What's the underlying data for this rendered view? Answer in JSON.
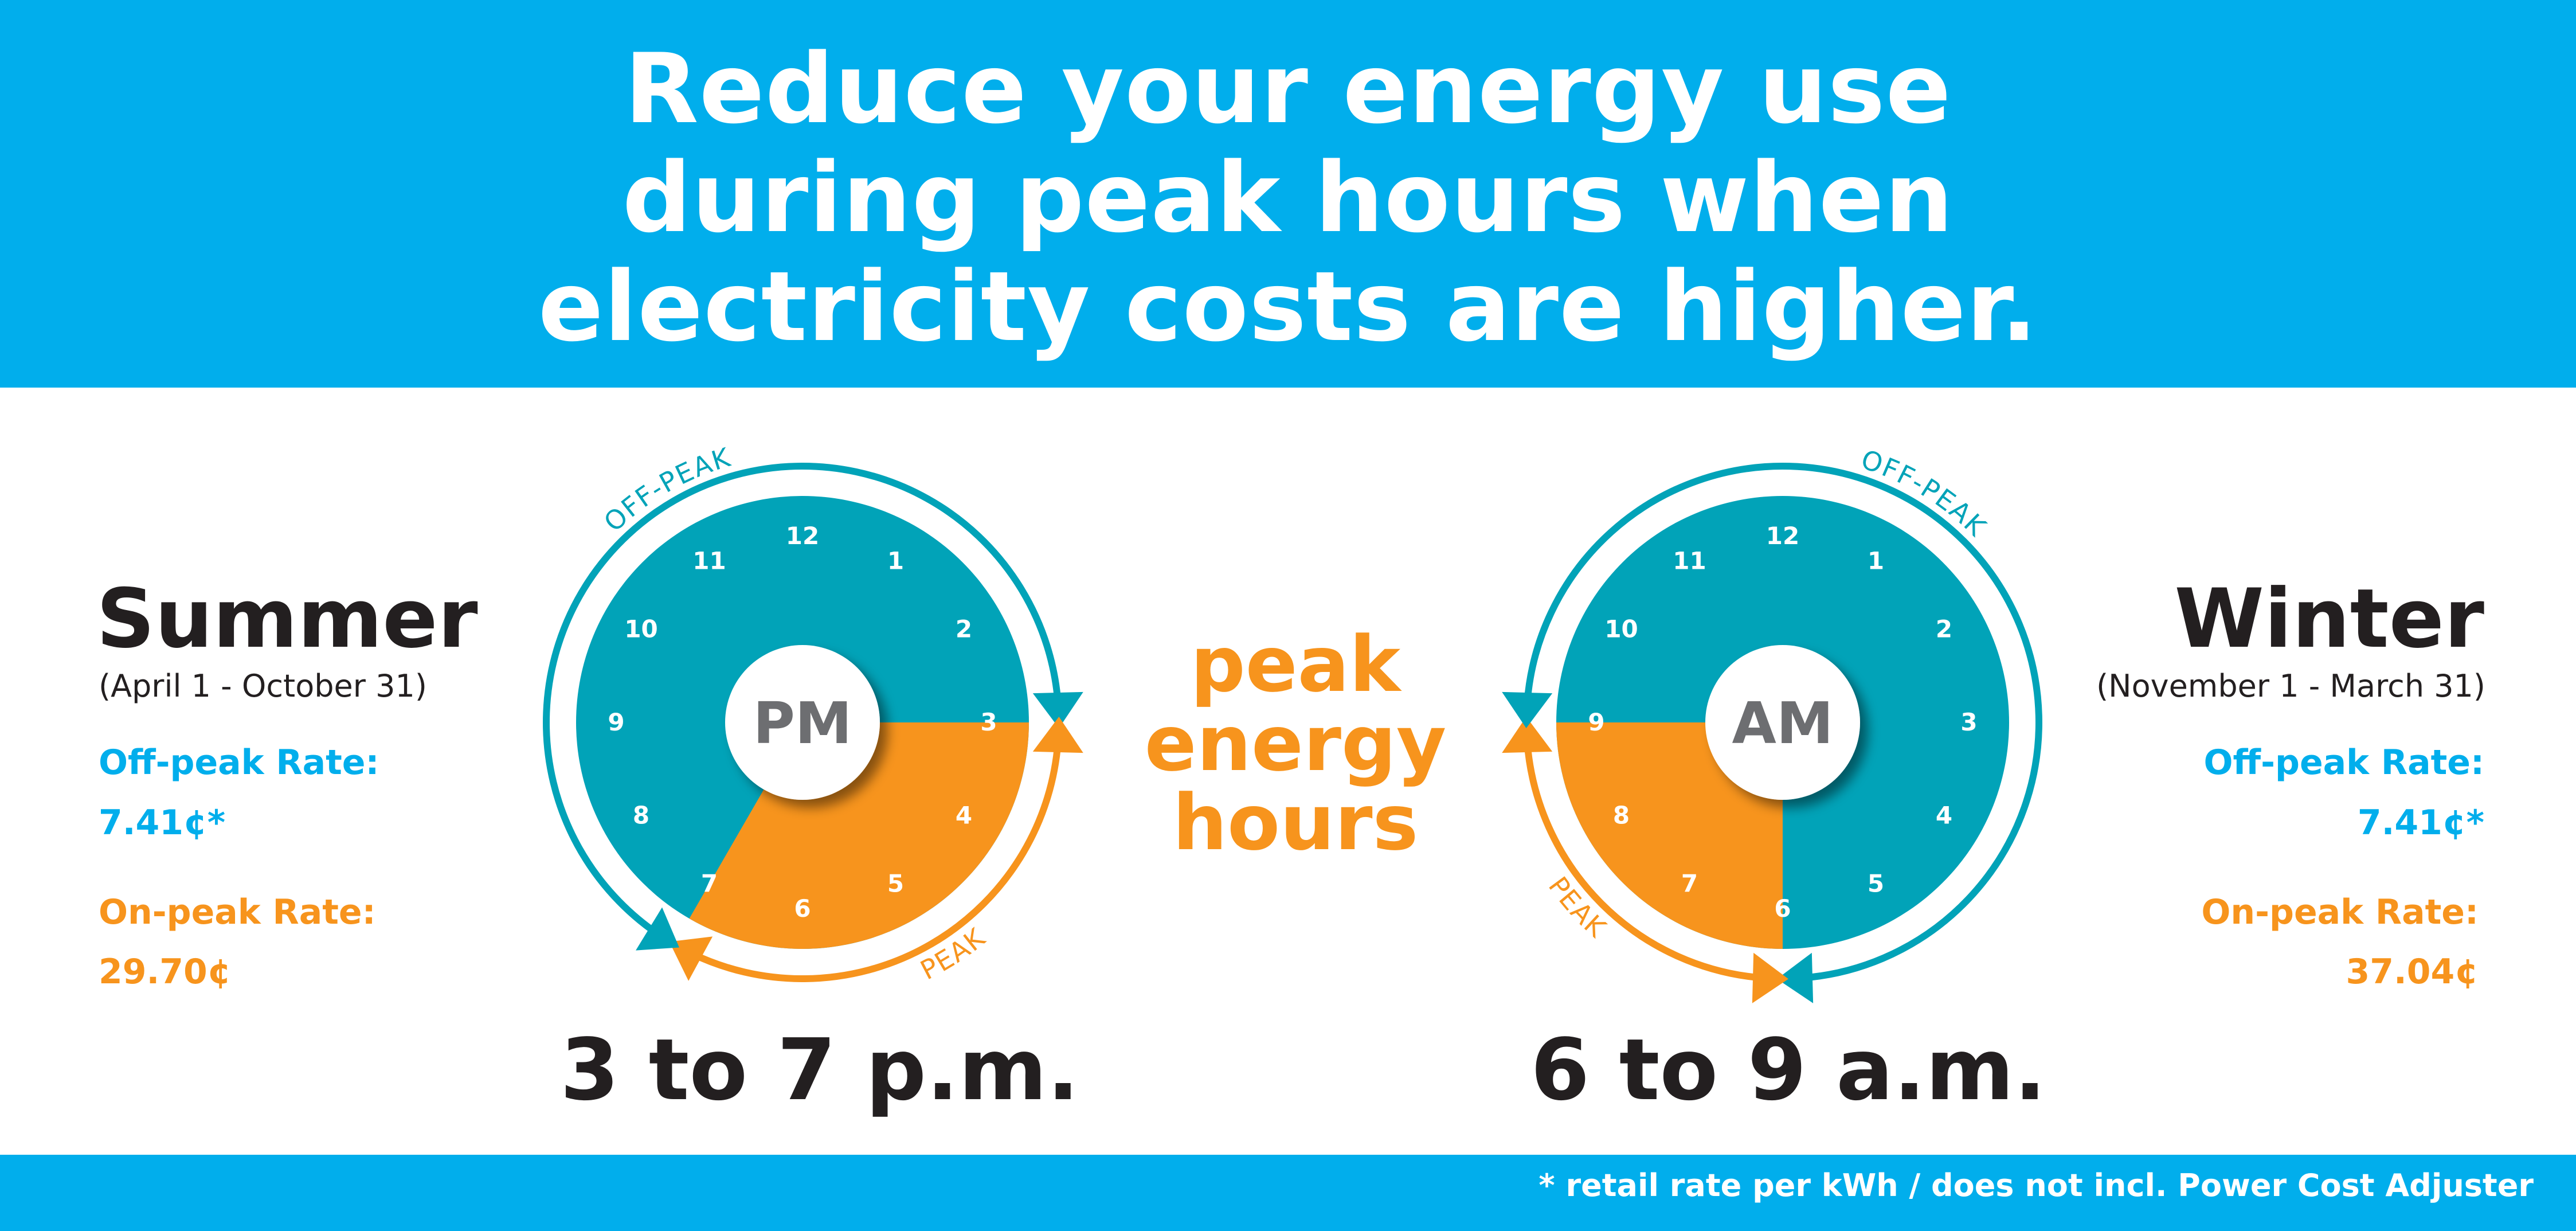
{
  "header": {
    "lines": [
      "Reduce your energy use",
      "during peak hours when",
      "electricity costs are higher."
    ]
  },
  "summer": {
    "title": "Summer",
    "dates": "(April 1 - October 31)",
    "offpeak_label": "Off-peak Rate:",
    "offpeak_value": "7.41¢*",
    "onpeak_label": "On-peak Rate:",
    "onpeak_value": "29.70¢",
    "clock_center": "PM",
    "offpeak_arc_label": "OFF-PEAK",
    "peak_arc_label": "PEAK",
    "time_range": "3 to 7 p.m.",
    "peak_start_hour": 3,
    "peak_end_hour": 7
  },
  "winter": {
    "title": "Winter",
    "dates": "(November 1 - March 31)",
    "offpeak_label": "Off-peak Rate:",
    "offpeak_value": "7.41¢*",
    "onpeak_label": "On-peak Rate:",
    "onpeak_value": "37.04¢",
    "clock_center": "AM",
    "offpeak_arc_label": "OFF-PEAK",
    "peak_arc_label": "PEAK",
    "time_range": "6 to 9 a.m.",
    "peak_start_hour": 6,
    "peak_end_hour": 9
  },
  "center": {
    "lines": [
      "peak",
      "energy",
      "hours"
    ]
  },
  "clock_numbers": [
    "12",
    "1",
    "2",
    "3",
    "4",
    "5",
    "6",
    "7",
    "8",
    "9",
    "10",
    "11"
  ],
  "footnote": "* retail rate per kWh / does not incl. Power Cost Adjuster",
  "colors": {
    "banner": "#01aeec",
    "offpeak": "#01a3b8",
    "onpeak": "#f7941d",
    "text_dark": "#231f20"
  }
}
